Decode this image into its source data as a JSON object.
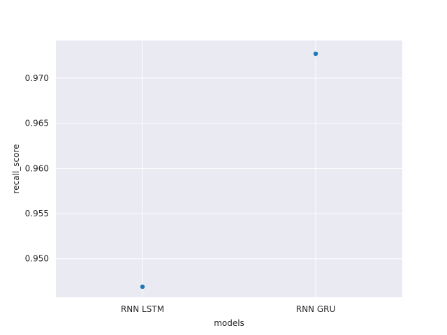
{
  "chart_data": {
    "type": "scatter",
    "categories": [
      "RNN LSTM",
      "RNN GRU"
    ],
    "series": [
      {
        "values": [
          0.9469,
          0.9727
        ]
      }
    ],
    "xlabel": "models",
    "ylabel": "recall_score",
    "ylim": [
      0.94573,
      0.97417
    ],
    "yticks": [
      0.95,
      0.955,
      0.96,
      0.965,
      0.97
    ],
    "ytick_labels": [
      "0.950",
      "0.955",
      "0.960",
      "0.965",
      "0.970"
    ],
    "grid": true,
    "style": "seaborn-darkgrid",
    "colors": {
      "plot_background": "#eaeaf2",
      "grid": "#ffffff",
      "marker": "#1f77b4"
    }
  }
}
